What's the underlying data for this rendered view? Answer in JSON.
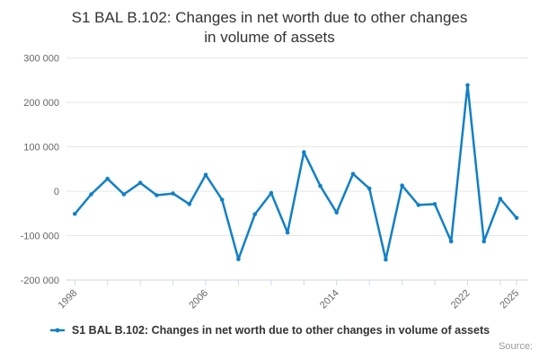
{
  "header": {
    "title_line1": "S1 BAL B.102: Changes in net worth due to other changes",
    "title_line2": "in volume of assets"
  },
  "legend": {
    "label": "S1 BAL B.102: Changes in net worth due to other changes in volume of assets"
  },
  "credits": {
    "text": "Source:"
  },
  "colors": {
    "series_line": "#1380c4",
    "grid_line": "#e6e6e6",
    "axis_line": "#ccd6eb",
    "tick": "#ccd6eb",
    "axis_label": "#666666",
    "title_text": "#333333",
    "legend_text": "#333333",
    "credits_text": "#999999"
  },
  "chart_data": {
    "type": "line",
    "title": "S1 BAL B.102: Changes in net worth due to other changes in volume of assets",
    "xlabel": "",
    "ylabel": "",
    "x": [
      1998,
      1999,
      2000,
      2001,
      2002,
      2003,
      2004,
      2005,
      2006,
      2007,
      2008,
      2009,
      2010,
      2011,
      2012,
      2013,
      2014,
      2015,
      2016,
      2017,
      2018,
      2019,
      2020,
      2021,
      2022,
      2023,
      2024,
      2025
    ],
    "series": [
      {
        "name": "S1 BAL B.102: Changes in net worth due to other changes in volume of assets",
        "values": [
          -51000,
          -7000,
          28000,
          -7000,
          19000,
          -9000,
          -5000,
          -29000,
          37000,
          -19000,
          -153000,
          -52000,
          -4000,
          -93000,
          88000,
          12000,
          -48000,
          39000,
          6000,
          -154000,
          13000,
          -31000,
          -29000,
          -113000,
          239000,
          -113000,
          -17000,
          -60000
        ]
      }
    ],
    "ylim": [
      -200000,
      300000
    ],
    "ytick_step": 100000,
    "ytick_labels": [
      "-200 000",
      "-100 000",
      "0",
      "100 000",
      "200 000",
      "300 000"
    ],
    "xtick_labeled_years": [
      1998,
      2006,
      2014,
      2022,
      2025
    ],
    "xtick_minor_step": 2,
    "x_label_rotation": -45,
    "grid": true,
    "legend_position": "bottom-center",
    "marker": "circle"
  }
}
